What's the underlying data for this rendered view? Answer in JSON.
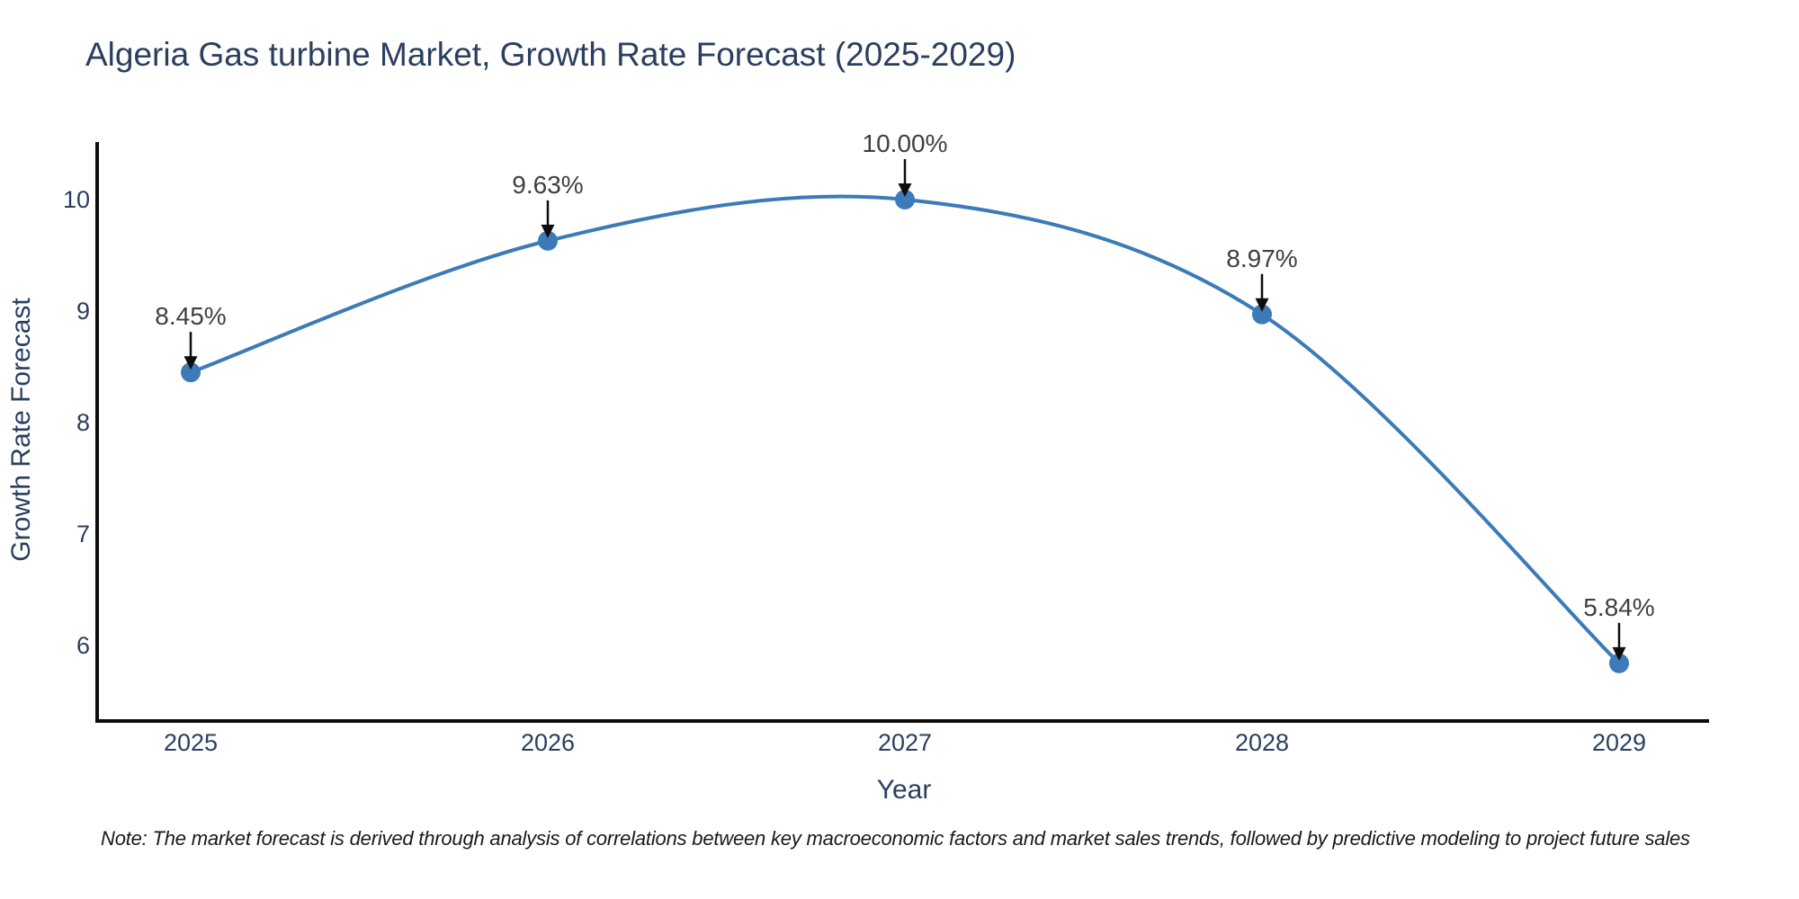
{
  "title": "Algeria Gas turbine Market, Growth Rate Forecast (2025-2029)",
  "note": "Note: The market forecast is derived through analysis of correlations between key macroeconomic factors and market sales trends, followed by predictive modeling to project future sales",
  "chart_data": {
    "type": "line",
    "title": "Algeria Gas turbine Market, Growth Rate Forecast (2025-2029)",
    "x": [
      2025,
      2026,
      2027,
      2028,
      2029
    ],
    "values": [
      8.45,
      9.63,
      10.0,
      8.97,
      5.84
    ],
    "point_labels": [
      "8.45%",
      "9.63%",
      "10.00%",
      "8.97%",
      "5.84%"
    ],
    "xlabel": "Year",
    "ylabel": "Growth Rate Forecast",
    "xticks": [
      "2025",
      "2026",
      "2027",
      "2028",
      "2029"
    ],
    "yticks": [
      6,
      7,
      8,
      9,
      10
    ],
    "xlim": [
      2024.73,
      2029.25
    ],
    "ylim": [
      5.33,
      10.52
    ],
    "grid": false,
    "legend": "none",
    "smooth": true,
    "line_color": "#3c7bb8",
    "marker_color": "#3c7bb8",
    "axis_color": "#0d0d0d",
    "text_color": "#2a3f5f",
    "annotation_text_color": "#404040",
    "annotation_arrow_color": "#0d0d0d"
  }
}
